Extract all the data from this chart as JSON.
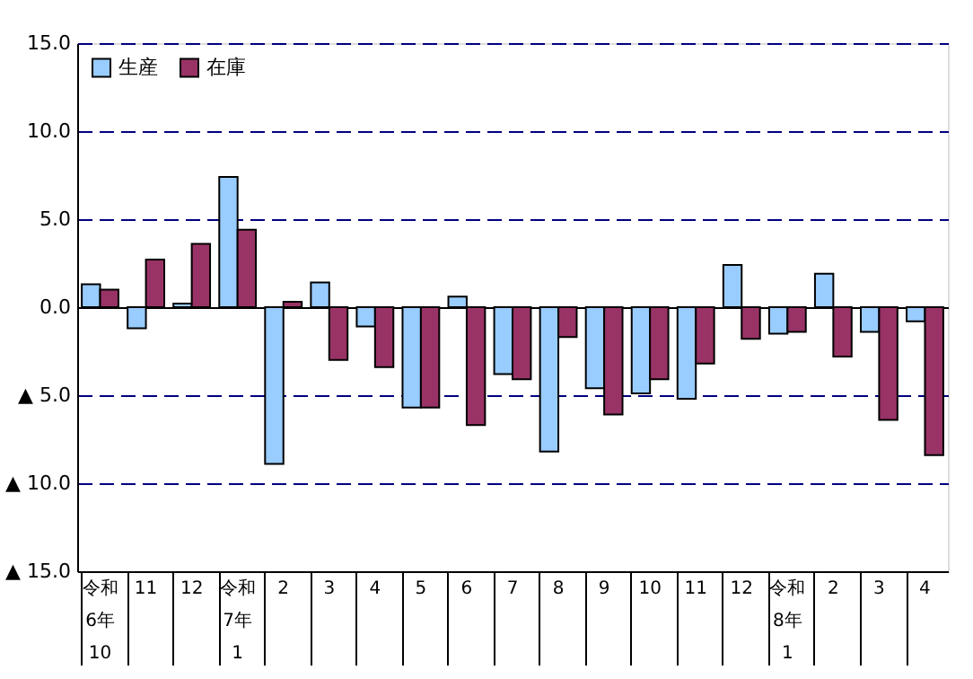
{
  "chart_data": {
    "type": "bar",
    "categories": [
      "令和\n6年\n10",
      "11",
      "12",
      "令和\n7年\n1",
      "2",
      "3",
      "4",
      "5",
      "6",
      "7",
      "8",
      "9",
      "10",
      "11",
      "12",
      "令和\n8年\n1",
      "2",
      "3",
      "4"
    ],
    "series": [
      {
        "name": "生産",
        "color": "#99ccff",
        "values": [
          1.3,
          -1.2,
          0.2,
          7.4,
          -8.9,
          1.4,
          -1.1,
          -5.7,
          0.6,
          -3.8,
          -8.2,
          -4.6,
          -4.9,
          -5.2,
          2.4,
          -1.5,
          1.9,
          -1.4,
          -0.8
        ]
      },
      {
        "name": "在庫",
        "color": "#993366",
        "values": [
          1.0,
          2.7,
          3.6,
          4.4,
          0.3,
          -3.0,
          -3.4,
          -5.7,
          -6.7,
          -4.1,
          -1.7,
          -6.1,
          -4.1,
          -3.2,
          -1.8,
          -1.4,
          -2.8,
          -6.4,
          -8.4
        ]
      }
    ],
    "ylim": [
      -15,
      15
    ],
    "yticks": [
      {
        "value": 15,
        "label": "15.0"
      },
      {
        "value": 10,
        "label": "10.0"
      },
      {
        "value": 5,
        "label": "5.0"
      },
      {
        "value": 0,
        "label": "0.0"
      },
      {
        "value": -5,
        "label": "▲ 5.0"
      },
      {
        "value": -10,
        "label": "▲ 10.0"
      },
      {
        "value": -15,
        "label": "▲ 15.0"
      }
    ],
    "grid": "y",
    "legend": "top left"
  }
}
